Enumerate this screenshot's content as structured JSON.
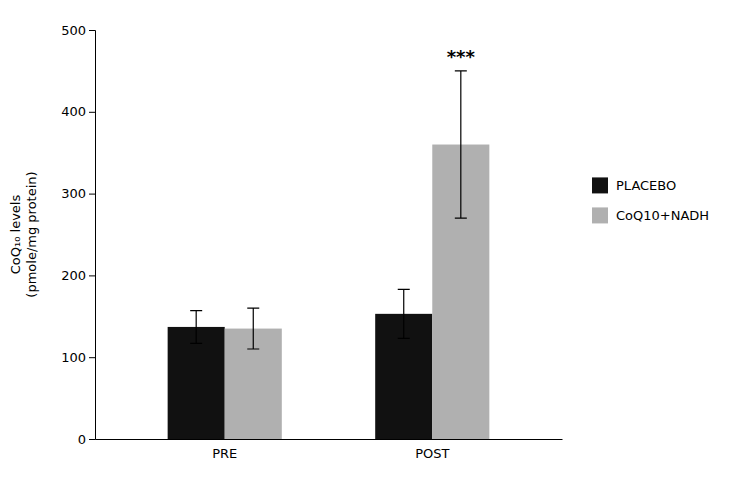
{
  "chart_data": {
    "type": "bar",
    "categories": [
      "PRE",
      "POST"
    ],
    "series": [
      {
        "name": "PLACEBO",
        "color": "#111111",
        "values": [
          137,
          153
        ],
        "errors": [
          20,
          30
        ]
      },
      {
        "name": "CoQ10+NADH",
        "color": "#b0b0b0",
        "values": [
          135,
          360
        ],
        "errors": [
          25,
          90
        ]
      }
    ],
    "y_label": "CoQ₁₀ levels\n(pmole/mg protein)",
    "ylim": [
      0,
      500
    ],
    "yticks": [
      0,
      100,
      200,
      300,
      400,
      500
    ],
    "annotations": [
      {
        "text": "***",
        "category": "POST",
        "series": "CoQ10+NADH"
      }
    ],
    "legend": "right",
    "grid": false
  }
}
